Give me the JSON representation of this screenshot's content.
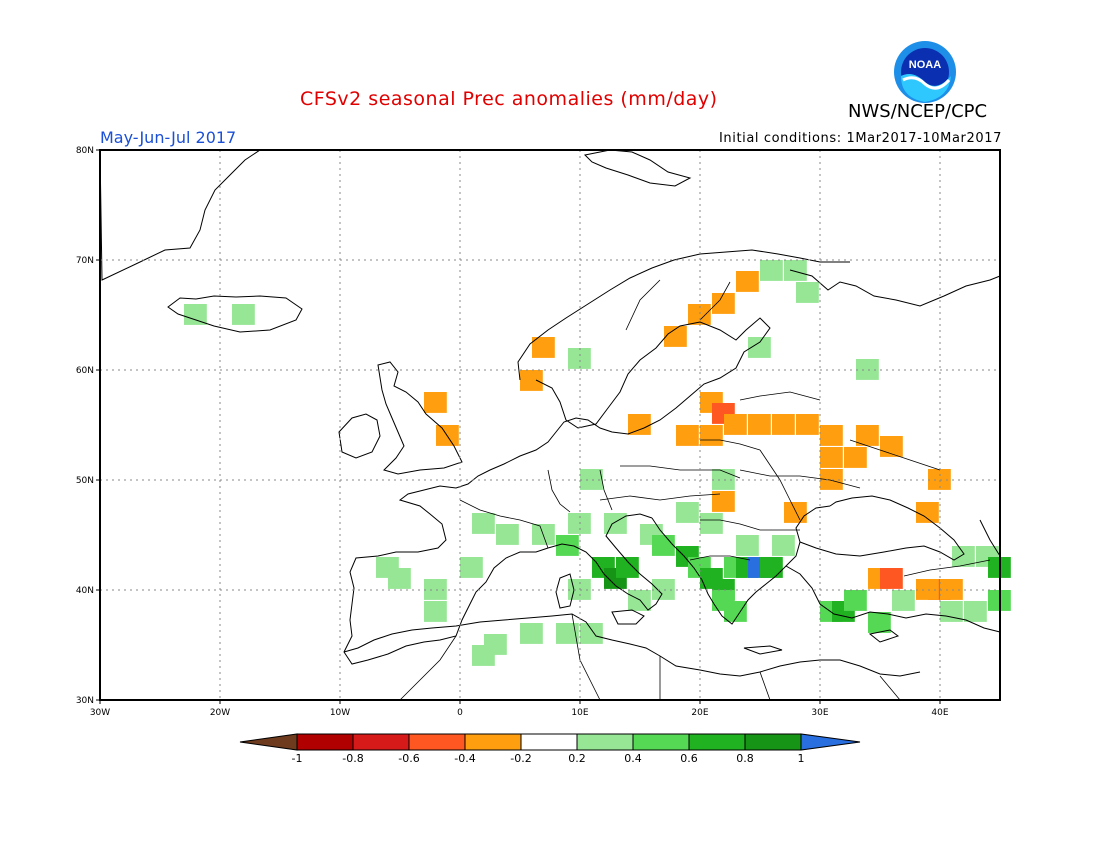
{
  "title": "CFSv2 seasonal Prec anomalies (mm/day)",
  "period": "May-Jun-Jul 2017",
  "initial_conditions": "Initial conditions: 1Mar2017-10Mar2017",
  "agency": "NWS/NCEP/CPC",
  "logo_text": "NOAA",
  "map": {
    "lon_range": [
      -30,
      45
    ],
    "lat_range": [
      30,
      80
    ],
    "lon_ticks": [
      "30W",
      "20W",
      "10W",
      "0",
      "10E",
      "20E",
      "30E",
      "40E"
    ],
    "lat_ticks": [
      "80N",
      "70N",
      "60N",
      "50N",
      "40N",
      "30N"
    ],
    "gridlines": "dotted"
  },
  "colorbar": {
    "labels": [
      "-1",
      "-0.8",
      "-0.6",
      "-0.4",
      "-0.2",
      "0.2",
      "0.4",
      "0.6",
      "0.8",
      "1"
    ],
    "colors": [
      "#6e3b1e",
      "#b00000",
      "#d61a1a",
      "#ff5722",
      "#ff9f10",
      "#ffffff",
      "#96e696",
      "#55d955",
      "#21b221",
      "#169416",
      "#2a6fe0"
    ]
  },
  "anomaly_cells": [
    {
      "lon": -3,
      "lat": 57,
      "v": -0.3
    },
    {
      "lon": -2,
      "lat": 54,
      "v": -0.3
    },
    {
      "lon": 6,
      "lat": 62,
      "v": -0.3
    },
    {
      "lon": 5,
      "lat": 59,
      "v": -0.3
    },
    {
      "lon": 19,
      "lat": 65,
      "v": -0.3
    },
    {
      "lon": 21,
      "lat": 66,
      "v": -0.3
    },
    {
      "lon": 23,
      "lat": 68,
      "v": -0.3
    },
    {
      "lon": 17,
      "lat": 63,
      "v": -0.3
    },
    {
      "lon": 20,
      "lat": 57,
      "v": -0.3
    },
    {
      "lon": 21,
      "lat": 56,
      "v": -0.5
    },
    {
      "lon": 22,
      "lat": 55,
      "v": -0.3
    },
    {
      "lon": 24,
      "lat": 55,
      "v": -0.3
    },
    {
      "lon": 26,
      "lat": 55,
      "v": -0.3
    },
    {
      "lon": 28,
      "lat": 55,
      "v": -0.3
    },
    {
      "lon": 30,
      "lat": 54,
      "v": -0.3
    },
    {
      "lon": 20,
      "lat": 54,
      "v": -0.3
    },
    {
      "lon": 18,
      "lat": 54,
      "v": -0.3
    },
    {
      "lon": 14,
      "lat": 55,
      "v": -0.3
    },
    {
      "lon": 30,
      "lat": 52,
      "v": -0.3
    },
    {
      "lon": 32,
      "lat": 52,
      "v": -0.3
    },
    {
      "lon": 33,
      "lat": 54,
      "v": -0.3
    },
    {
      "lon": 35,
      "lat": 53,
      "v": -0.3
    },
    {
      "lon": 30,
      "lat": 50,
      "v": -0.3
    },
    {
      "lon": 39,
      "lat": 50,
      "v": -0.3
    },
    {
      "lon": 27,
      "lat": 47,
      "v": -0.3
    },
    {
      "lon": 38,
      "lat": 47,
      "v": -0.3
    },
    {
      "lon": 21,
      "lat": 48,
      "v": -0.3
    },
    {
      "lon": 34,
      "lat": 41,
      "v": -0.3
    },
    {
      "lon": 35,
      "lat": 41,
      "v": -0.5
    },
    {
      "lon": 39,
      "lat": 40,
      "v": -0.5
    },
    {
      "lon": 38,
      "lat": 40,
      "v": -0.3
    },
    {
      "lon": 40,
      "lat": 40,
      "v": -0.3
    },
    {
      "lon": 3,
      "lat": 45,
      "v": 0.3
    },
    {
      "lon": 1,
      "lat": 46,
      "v": 0.3
    },
    {
      "lon": 6,
      "lat": 45,
      "v": 0.3
    },
    {
      "lon": 9,
      "lat": 46,
      "v": 0.3
    },
    {
      "lon": 12,
      "lat": 46,
      "v": 0.3
    },
    {
      "lon": 15,
      "lat": 45,
      "v": 0.3
    },
    {
      "lon": 8,
      "lat": 44,
      "v": 0.5
    },
    {
      "lon": 11,
      "lat": 42,
      "v": 0.7
    },
    {
      "lon": 12,
      "lat": 41,
      "v": 0.9
    },
    {
      "lon": 13,
      "lat": 42,
      "v": 0.7
    },
    {
      "lon": 16,
      "lat": 44,
      "v": 0.5
    },
    {
      "lon": 18,
      "lat": 43,
      "v": 0.7
    },
    {
      "lon": 19,
      "lat": 42,
      "v": 0.5
    },
    {
      "lon": 20,
      "lat": 41,
      "v": 0.7
    },
    {
      "lon": 21,
      "lat": 40,
      "v": 0.7
    },
    {
      "lon": 22,
      "lat": 42,
      "v": 0.5
    },
    {
      "lon": 23,
      "lat": 42,
      "v": 0.7
    },
    {
      "lon": 24,
      "lat": 42,
      "v": 1.1
    },
    {
      "lon": 25,
      "lat": 42,
      "v": 0.7
    },
    {
      "lon": 21,
      "lat": 39,
      "v": 0.5
    },
    {
      "lon": 22,
      "lat": 38,
      "v": 0.5
    },
    {
      "lon": 23,
      "lat": 44,
      "v": 0.3
    },
    {
      "lon": 26,
      "lat": 44,
      "v": 0.3
    },
    {
      "lon": 20,
      "lat": 46,
      "v": 0.3
    },
    {
      "lon": 18,
      "lat": 47,
      "v": 0.3
    },
    {
      "lon": 10,
      "lat": 50,
      "v": 0.3
    },
    {
      "lon": 21,
      "lat": 50,
      "v": 0.3
    },
    {
      "lon": 16,
      "lat": 40,
      "v": 0.3
    },
    {
      "lon": 14,
      "lat": 39,
      "v": 0.3
    },
    {
      "lon": 9,
      "lat": 40,
      "v": 0.3
    },
    {
      "lon": -6,
      "lat": 41,
      "v": 0.3
    },
    {
      "lon": -3,
      "lat": 40,
      "v": 0.3
    },
    {
      "lon": 0,
      "lat": 42,
      "v": 0.3
    },
    {
      "lon": -7,
      "lat": 42,
      "v": 0.3
    },
    {
      "lon": -3,
      "lat": 38,
      "v": 0.3
    },
    {
      "lon": 2,
      "lat": 35,
      "v": 0.3
    },
    {
      "lon": 5,
      "lat": 36,
      "v": 0.3
    },
    {
      "lon": 8,
      "lat": 36,
      "v": 0.3
    },
    {
      "lon": 10,
      "lat": 36,
      "v": 0.3
    },
    {
      "lon": 1,
      "lat": 34,
      "v": 0.3
    },
    {
      "lon": 30,
      "lat": 38,
      "v": 0.5
    },
    {
      "lon": 31,
      "lat": 38,
      "v": 0.7
    },
    {
      "lon": 32,
      "lat": 39,
      "v": 0.5
    },
    {
      "lon": 34,
      "lat": 37,
      "v": 0.5
    },
    {
      "lon": 36,
      "lat": 39,
      "v": 0.3
    },
    {
      "lon": 40,
      "lat": 38,
      "v": 0.3
    },
    {
      "lon": 42,
      "lat": 38,
      "v": 0.3
    },
    {
      "lon": 44,
      "lat": 39,
      "v": 0.5
    },
    {
      "lon": 43,
      "lat": 43,
      "v": 0.3
    },
    {
      "lon": 44,
      "lat": 42,
      "v": 0.7
    },
    {
      "lon": 41,
      "lat": 43,
      "v": 0.3
    },
    {
      "lon": -23,
      "lat": 65,
      "v": 0.3
    },
    {
      "lon": -19,
      "lat": 65,
      "v": 0.3
    },
    {
      "lon": 25,
      "lat": 69,
      "v": 0.3
    },
    {
      "lon": 27,
      "lat": 69,
      "v": 0.3
    },
    {
      "lon": 28,
      "lat": 67,
      "v": 0.3
    },
    {
      "lon": 24,
      "lat": 62,
      "v": 0.3
    },
    {
      "lon": 33,
      "lat": 60,
      "v": 0.3
    },
    {
      "lon": 9,
      "lat": 61,
      "v": 0.3
    }
  ]
}
